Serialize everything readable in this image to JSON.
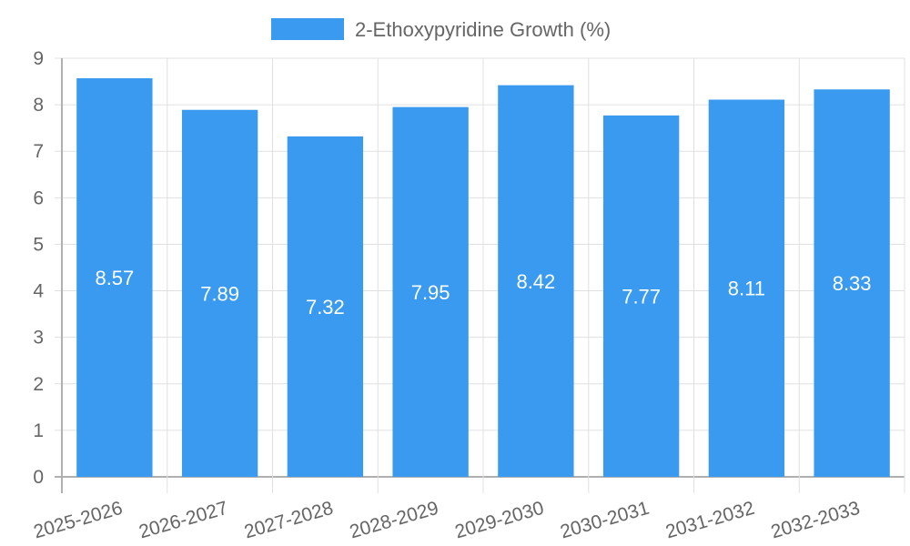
{
  "chart_data": {
    "type": "bar",
    "title": "",
    "xlabel": "",
    "ylabel": "",
    "categories": [
      "2025-2026",
      "2026-2027",
      "2027-2028",
      "2028-2029",
      "2029-2030",
      "2030-2031",
      "2031-2032",
      "2032-2033"
    ],
    "series": [
      {
        "name": "2-Ethoxypyridine Growth (%)",
        "values": [
          8.57,
          7.89,
          7.32,
          7.95,
          8.42,
          7.77,
          8.11,
          8.33
        ],
        "color": "#3a9af0"
      }
    ],
    "ylim": [
      0,
      9
    ],
    "yticks": [
      0,
      1,
      2,
      3,
      4,
      5,
      6,
      7,
      8,
      9
    ],
    "grid": true,
    "legend_position": "top",
    "data_labels": [
      "8.57",
      "7.89",
      "7.32",
      "7.95",
      "8.42",
      "7.77",
      "8.11",
      "8.33"
    ]
  },
  "legend": {
    "label": "2-Ethoxypyridine Growth (%)",
    "color": "#3a9af0"
  },
  "colors": {
    "bar": "#3a9af0",
    "grid": "#e0e0e0",
    "axis": "#b0b0b0",
    "text": "#666666"
  }
}
